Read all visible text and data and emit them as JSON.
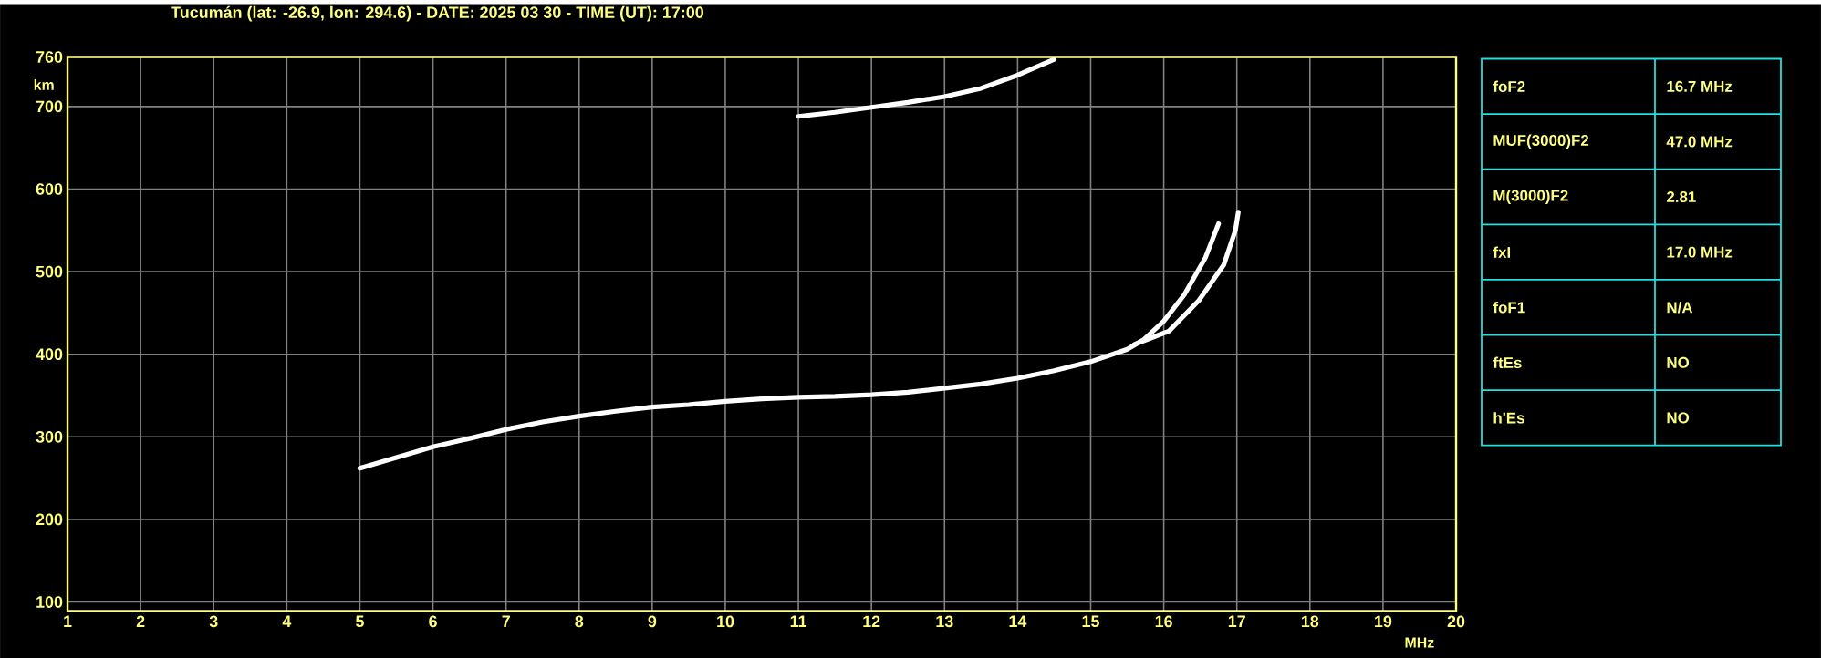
{
  "chart_data": [
    {
      "type": "line",
      "title": "Tucumán (lat: -26.9, lon: 294.6) - DATE: 2025 03 30 - TIME (UT): 17:00",
      "xlabel": "MHz",
      "ylabel": "km",
      "xlim": [
        1,
        20
      ],
      "ylim": [
        89,
        760
      ],
      "xticks": [
        1,
        2,
        3,
        4,
        5,
        6,
        7,
        8,
        9,
        10,
        11,
        12,
        13,
        14,
        15,
        16,
        17,
        18,
        19,
        20
      ],
      "yticks": [
        100,
        200,
        300,
        400,
        500,
        600,
        700,
        760
      ],
      "grid": true,
      "series": [
        {
          "color": "#ffffff",
          "x": [
            5.0,
            5.5,
            6.0,
            6.5,
            7.0,
            7.5,
            8.0,
            8.5,
            9.0,
            9.5,
            10.0,
            10.5,
            11.0,
            11.5,
            12.0,
            12.5,
            13.0,
            13.5,
            14.0,
            14.5,
            15.0,
            15.5,
            15.73,
            16.0,
            16.28,
            16.57,
            16.75
          ],
          "values": [
            262,
            275,
            288,
            298,
            309,
            318,
            325,
            331,
            336,
            339,
            343,
            346,
            348,
            349,
            351,
            354,
            359,
            364,
            371,
            380,
            391,
            406,
            418,
            440,
            472,
            517,
            558
          ]
        },
        {
          "color": "#ffffff",
          "x": [
            15.6,
            16.07,
            16.48,
            16.82,
            16.98,
            17.02
          ],
          "values": [
            412,
            428,
            465,
            508,
            550,
            572
          ]
        },
        {
          "color": "#ffffff",
          "x": [
            11.0,
            11.5,
            12.0,
            12.5,
            13.0,
            13.5,
            14.0,
            14.5
          ],
          "values": [
            688,
            693,
            699,
            705,
            712,
            722,
            738,
            757
          ]
        }
      ]
    },
    {
      "type": "other",
      "annotations": [
        "foF2",
        "16.7 MHz",
        "MUF(3000)F2",
        "47.0 MHz",
        "M(3000)F2",
        "2.81",
        "fxI",
        "17.0 MHz",
        "foF1",
        "N/A",
        "ftEs",
        "NO",
        "h'Es",
        "NO"
      ]
    }
  ]
}
